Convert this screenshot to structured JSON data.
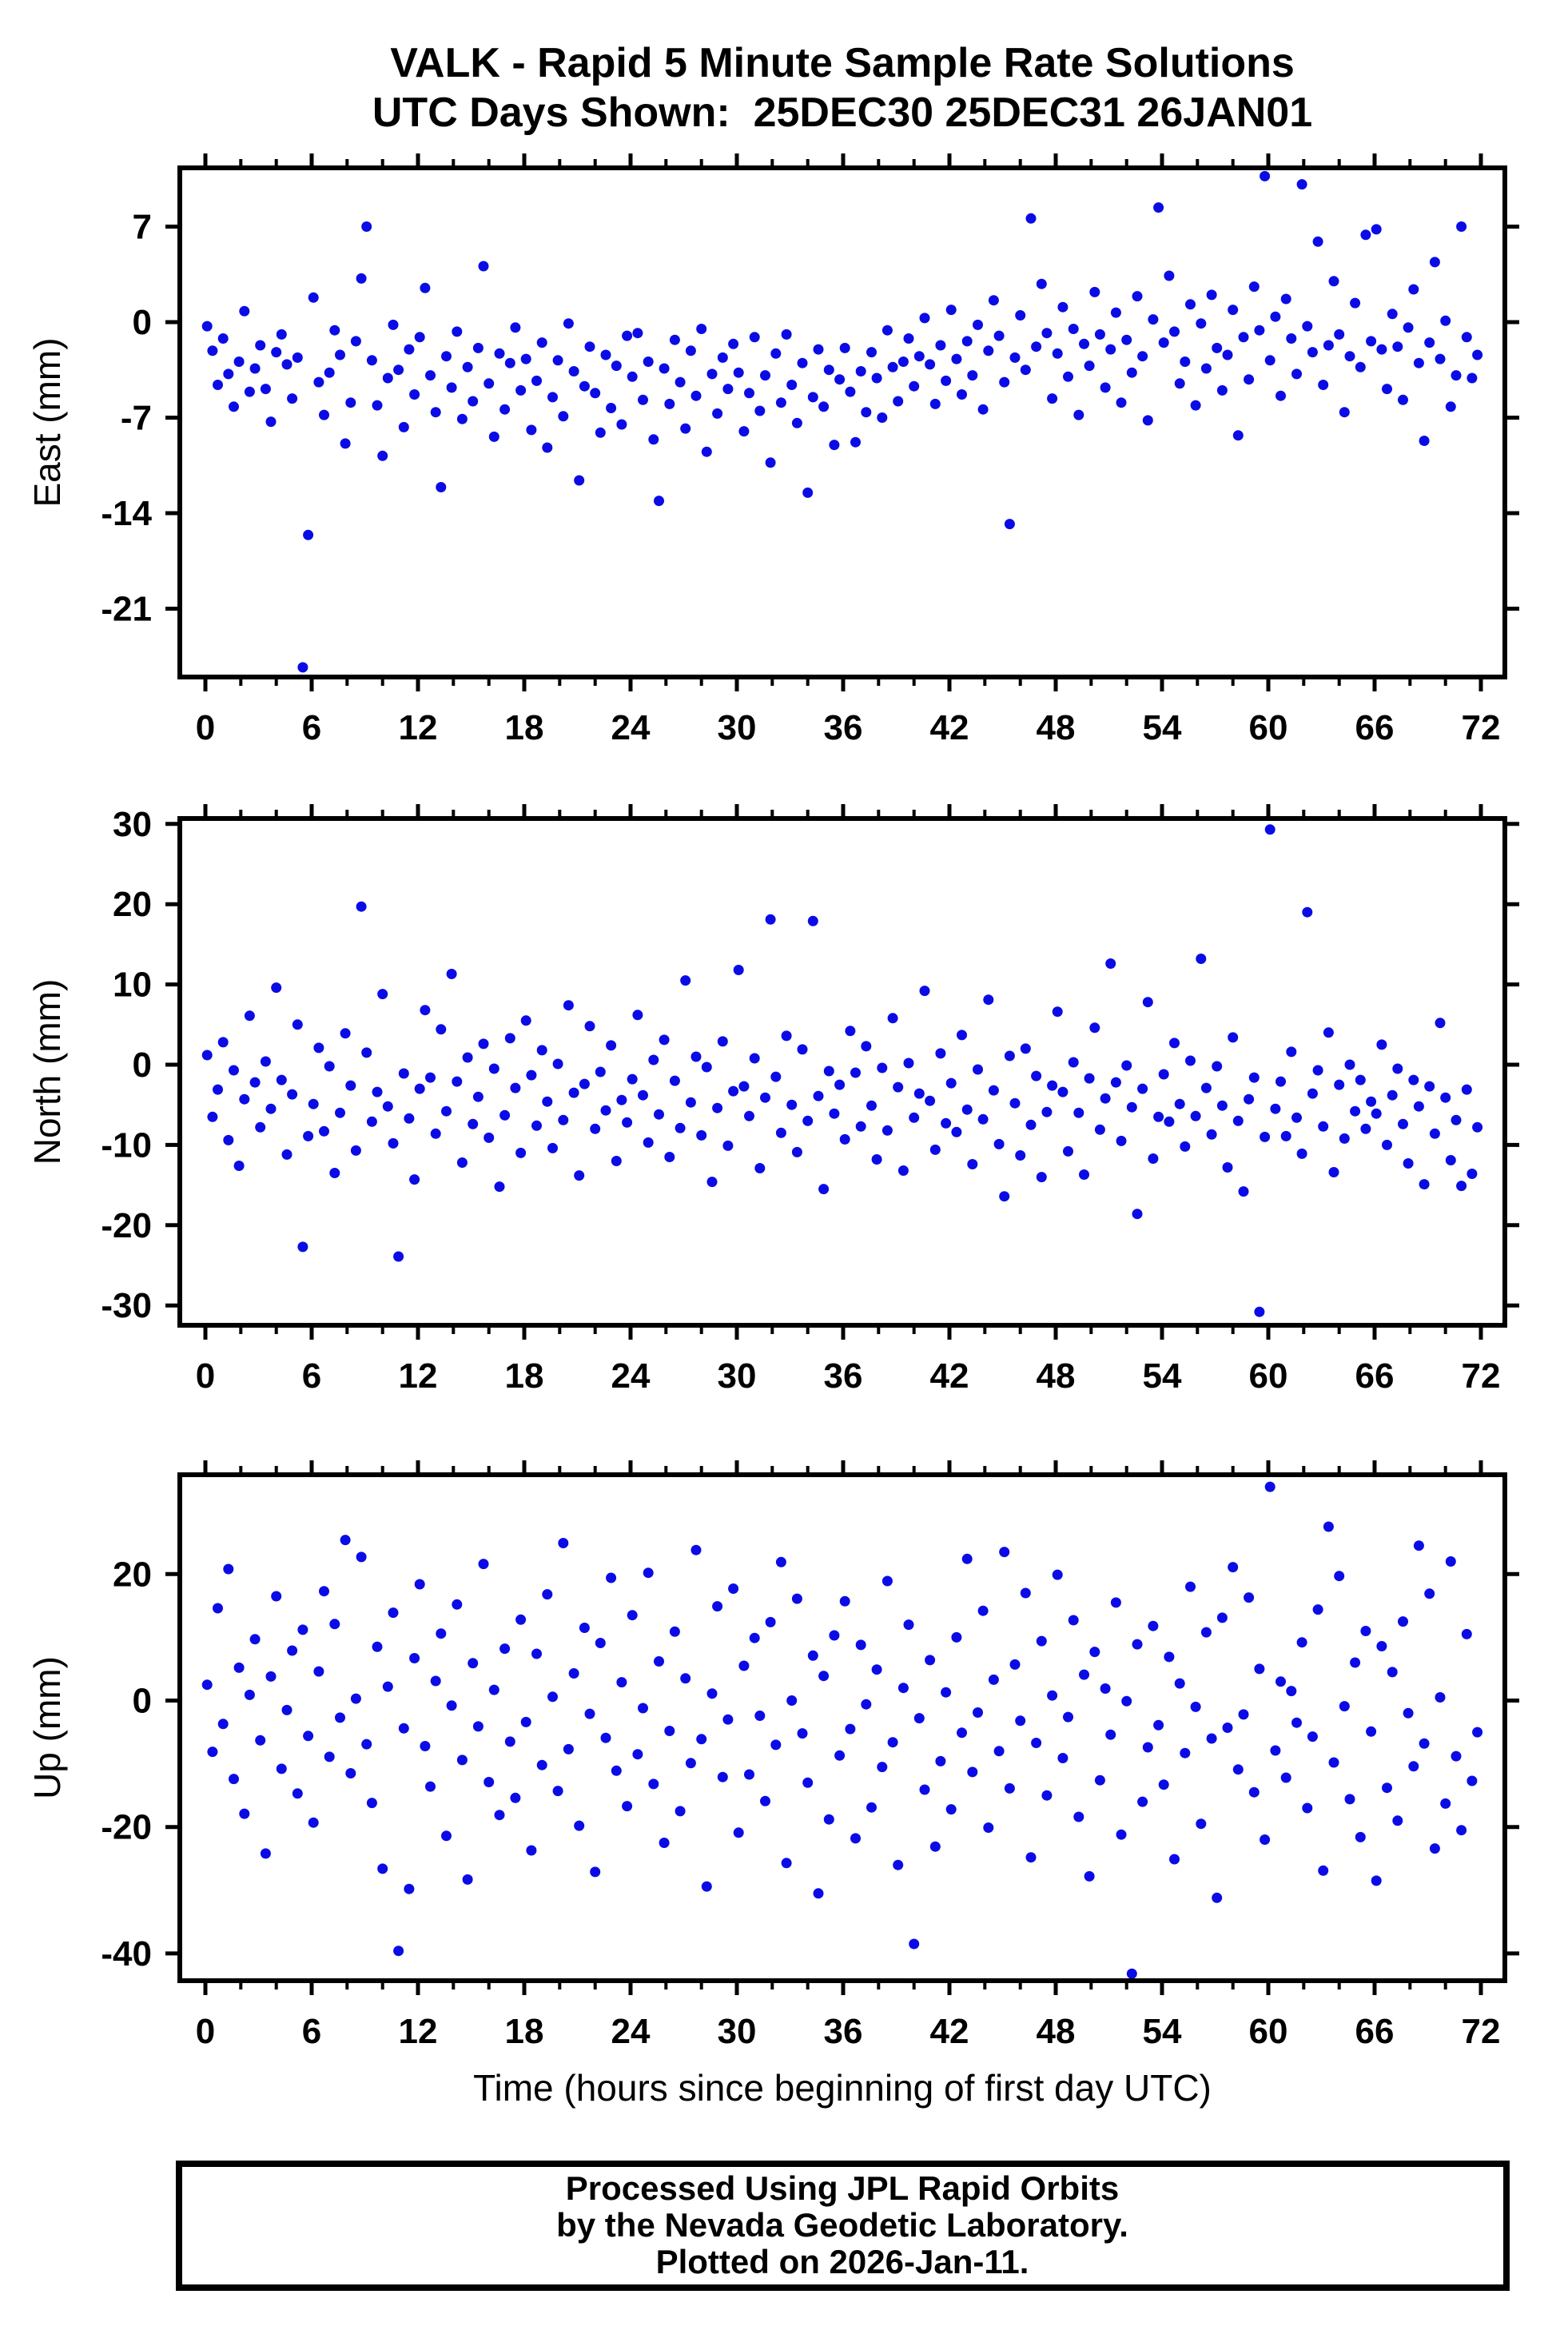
{
  "page": {
    "background": "#ffffff",
    "axes_color": "#000000"
  },
  "chart_data": {
    "type": "scatter",
    "title_line1": "VALK - Rapid 5 Minute Sample Rate Solutions",
    "title_line2": "UTC Days Shown:  25DEC30 25DEC31 26JAN01",
    "xlabel": "Time (hours since beginning of first day UTC)",
    "marker_color": "#0b0be6",
    "x_axis": {
      "min": -1.44,
      "max": 73.35,
      "major_ticks": [
        0,
        6,
        12,
        18,
        24,
        30,
        36,
        42,
        48,
        54,
        60,
        66,
        72
      ],
      "minor_step": 2
    },
    "x_start": 0.1,
    "x_step": 0.3,
    "panels": [
      {
        "name": "east",
        "ylabel": "East (mm)",
        "ymin": -26.0,
        "ymax": 11.3,
        "yticks": [
          7,
          0,
          -7,
          -14,
          -21
        ],
        "values": [
          -0.3,
          -2.1,
          -4.6,
          -1.2,
          -3.8,
          -6.2,
          -2.9,
          0.8,
          -5.1,
          -3.4,
          -1.7,
          -4.9,
          -7.3,
          -2.2,
          -0.9,
          -3.1,
          -5.6,
          -2.6,
          -25.3,
          -15.6,
          1.8,
          -4.4,
          -6.8,
          -3.7,
          -0.6,
          -2.4,
          -8.9,
          -5.9,
          -1.4,
          3.2,
          7.0,
          -2.8,
          -6.1,
          -9.8,
          -4.1,
          -0.2,
          -3.5,
          -7.7,
          -2.0,
          -5.3,
          -1.1,
          2.5,
          -3.9,
          -6.6,
          -12.1,
          -2.5,
          -4.8,
          -0.7,
          -7.1,
          -3.3,
          -5.8,
          -1.9,
          4.1,
          -4.5,
          -8.4,
          -2.3,
          -6.4,
          -3.0,
          -0.4,
          -5.0,
          -2.7,
          -7.9,
          -4.3,
          -1.5,
          -9.2,
          -5.5,
          -2.8,
          -6.9,
          -0.1,
          -3.6,
          -11.6,
          -4.7,
          -1.8,
          -5.2,
          -8.1,
          -2.4,
          -6.3,
          -3.2,
          -7.5,
          -1.0,
          -4.0,
          -0.8,
          -5.7,
          -2.9,
          -8.6,
          -13.1,
          -3.4,
          -6.0,
          -1.3,
          -4.4,
          -7.8,
          -2.1,
          -5.4,
          -0.5,
          -9.5,
          -3.8,
          -6.7,
          -2.6,
          -4.9,
          -1.6,
          -3.7,
          -8.0,
          -5.2,
          -1.1,
          -6.5,
          -3.9,
          -10.3,
          -2.3,
          -5.9,
          -0.9,
          -4.6,
          -7.4,
          -3.0,
          -12.5,
          -5.5,
          -2.0,
          -6.2,
          -3.5,
          -9.0,
          -4.2,
          -1.9,
          -5.1,
          -8.8,
          -3.6,
          -6.6,
          -2.2,
          -4.1,
          -7.0,
          -0.6,
          -3.3,
          -5.8,
          -2.9,
          -1.2,
          -4.7,
          -2.5,
          0.3,
          -3.1,
          -6.0,
          -1.7,
          -4.3,
          0.9,
          -2.7,
          -5.3,
          -1.4,
          -3.9,
          -0.2,
          -6.4,
          -2.1,
          1.6,
          -1.0,
          -4.4,
          -14.8,
          -2.6,
          0.5,
          -3.5,
          7.6,
          -1.8,
          2.8,
          -0.8,
          -5.6,
          -2.3,
          1.1,
          -4.0,
          -0.5,
          -6.8,
          -1.6,
          -3.2,
          2.2,
          -0.9,
          -4.8,
          -2.0,
          0.7,
          -5.9,
          -1.3,
          -3.7,
          1.9,
          -2.5,
          -7.2,
          0.2,
          8.4,
          -1.5,
          3.4,
          -0.7,
          -4.5,
          -2.9,
          1.3,
          -6.1,
          -0.1,
          -3.4,
          2.0,
          -1.9,
          -5.0,
          -2.4,
          0.9,
          -8.3,
          -1.1,
          -4.2,
          2.6,
          -0.6,
          10.7,
          -2.8,
          0.4,
          -5.4,
          1.7,
          -1.2,
          -3.8,
          10.1,
          -0.3,
          -2.2,
          5.9,
          -4.6,
          -1.7,
          3.0,
          -0.9,
          -6.6,
          -2.5,
          1.4,
          -3.3,
          6.4,
          -1.4,
          6.8,
          -2.0,
          -4.9,
          0.6,
          -1.8,
          -5.7,
          -0.4,
          2.4,
          -3.0,
          -8.7,
          -1.5,
          4.4,
          -2.7,
          0.1,
          -6.2,
          -3.9,
          7.0,
          -1.1,
          -4.1,
          -2.4
        ]
      },
      {
        "name": "north",
        "ylabel": "North (mm)",
        "ymin": -32.5,
        "ymax": 30.7,
        "yticks": [
          30,
          20,
          10,
          0,
          -10,
          -20,
          -30
        ],
        "values": [
          1.2,
          -6.5,
          -3.1,
          2.8,
          -9.4,
          -0.7,
          -12.6,
          -4.3,
          6.1,
          -2.2,
          -7.8,
          0.4,
          -5.5,
          9.6,
          -1.9,
          -11.2,
          -3.7,
          5.0,
          -22.7,
          -8.9,
          -4.9,
          2.1,
          -8.3,
          -0.2,
          -13.5,
          -6.0,
          3.9,
          -2.6,
          -10.7,
          19.7,
          1.5,
          -7.1,
          -3.4,
          8.8,
          -5.2,
          -9.8,
          -23.9,
          -1.1,
          -6.7,
          -14.3,
          -3.0,
          6.8,
          -1.6,
          -8.6,
          4.4,
          -5.8,
          11.3,
          -2.1,
          -12.2,
          0.9,
          -7.4,
          -4.0,
          2.6,
          -9.1,
          -0.5,
          -15.2,
          -6.3,
          3.3,
          -2.9,
          -11.0,
          5.5,
          -1.3,
          -7.6,
          1.8,
          -4.6,
          -10.4,
          0.1,
          -6.9,
          7.4,
          -3.5,
          -13.8,
          -2.4,
          4.8,
          -8.0,
          -0.9,
          -5.7,
          2.4,
          -12.0,
          -4.4,
          -7.2,
          -1.8,
          6.2,
          -3.8,
          -9.7,
          0.6,
          -6.2,
          3.1,
          -11.5,
          -2.0,
          -7.9,
          10.5,
          -4.7,
          1.0,
          -8.8,
          -0.3,
          -14.6,
          -5.4,
          2.9,
          -10.1,
          -3.3,
          11.8,
          -2.7,
          -6.4,
          0.8,
          -12.9,
          -4.1,
          18.1,
          -1.5,
          -8.5,
          3.6,
          -5.0,
          -10.9,
          1.9,
          -7.0,
          17.9,
          -3.9,
          -15.5,
          -0.8,
          -6.1,
          -2.5,
          -9.3,
          4.2,
          -1.0,
          -7.7,
          2.3,
          -5.1,
          -11.8,
          -0.4,
          -8.2,
          5.8,
          -2.8,
          -13.2,
          0.2,
          -6.6,
          -3.6,
          9.2,
          -4.5,
          -10.6,
          1.4,
          -7.3,
          -2.3,
          -8.4,
          3.7,
          -5.6,
          -12.4,
          -0.6,
          -6.8,
          8.1,
          -3.2,
          -9.9,
          -16.4,
          1.1,
          -4.8,
          -11.3,
          2.0,
          -7.5,
          -1.4,
          -14.0,
          -5.9,
          -2.6,
          6.6,
          -3.4,
          -10.8,
          0.3,
          -6.0,
          -13.7,
          -1.7,
          4.6,
          -8.1,
          -4.2,
          12.6,
          -2.2,
          -9.5,
          -0.1,
          -5.3,
          -18.6,
          -3.0,
          7.8,
          -11.7,
          -6.5,
          -1.2,
          -7.1,
          2.7,
          -4.9,
          -10.2,
          0.5,
          -6.4,
          13.2,
          -2.9,
          -8.7,
          -0.2,
          -5.1,
          -12.8,
          3.4,
          -7.0,
          -15.8,
          -4.3,
          -1.6,
          -30.8,
          -9.0,
          29.3,
          -5.5,
          -2.1,
          -8.9,
          1.6,
          -6.6,
          -11.1,
          19.0,
          -3.6,
          -0.7,
          -7.7,
          4.0,
          -13.4,
          -2.5,
          -9.2,
          0.0,
          -5.8,
          -1.9,
          -8.0,
          -4.6,
          -6.1,
          2.5,
          -10.0,
          -3.8,
          -0.5,
          -7.4,
          -12.3,
          -1.9,
          -5.2,
          -14.9,
          -2.7,
          -8.6,
          5.2,
          -4.1,
          -11.9,
          -6.9,
          -15.1,
          -3.1,
          -13.6,
          -7.8
        ]
      },
      {
        "name": "up",
        "ylabel": "Up (mm)",
        "ymin": -44.3,
        "ymax": 35.7,
        "yticks": [
          20,
          0,
          -20,
          -40
        ],
        "values": [
          2.5,
          -8.1,
          14.6,
          -3.7,
          20.8,
          -12.4,
          5.2,
          -17.9,
          0.9,
          9.7,
          -6.3,
          -24.2,
          3.8,
          16.5,
          -10.8,
          -1.5,
          7.9,
          -14.7,
          11.2,
          -5.6,
          -19.3,
          4.6,
          17.3,
          -8.9,
          12.1,
          -2.7,
          25.4,
          -11.5,
          0.3,
          22.7,
          -6.9,
          -16.2,
          8.5,
          -26.6,
          2.2,
          13.9,
          -39.6,
          -4.4,
          -29.8,
          6.7,
          18.4,
          -7.2,
          -13.6,
          3.1,
          10.6,
          -21.4,
          -0.8,
          15.2,
          -9.4,
          -28.3,
          5.9,
          -4.1,
          21.6,
          -12.9,
          1.7,
          -18.1,
          8.2,
          -6.5,
          -15.4,
          12.8,
          -3.4,
          -23.7,
          7.4,
          -10.2,
          16.8,
          0.6,
          -14.3,
          24.9,
          -7.7,
          4.3,
          -19.8,
          11.5,
          -2.1,
          -27.1,
          9.1,
          -5.9,
          19.4,
          -11.1,
          2.9,
          -16.7,
          13.5,
          -8.5,
          -1.2,
          20.2,
          -13.2,
          6.2,
          -22.5,
          -4.8,
          10.9,
          -17.5,
          3.5,
          -9.9,
          23.8,
          -6.1,
          -29.4,
          1.1,
          14.9,
          -12.1,
          -3.0,
          17.7,
          -20.9,
          5.5,
          -11.7,
          9.9,
          -2.4,
          -15.9,
          12.4,
          -7.0,
          21.9,
          -25.7,
          0.0,
          16.1,
          -5.2,
          -13.0,
          7.1,
          -30.5,
          3.9,
          -18.8,
          10.3,
          -8.7,
          15.7,
          -4.5,
          -21.8,
          8.8,
          -0.6,
          -16.9,
          4.9,
          -10.5,
          18.9,
          -6.6,
          -26.0,
          2.0,
          12.0,
          -38.5,
          -2.8,
          -14.1,
          6.4,
          -23.1,
          -9.6,
          1.3,
          -17.2,
          10.0,
          -5.1,
          22.4,
          -11.3,
          -1.9,
          14.2,
          -20.1,
          3.3,
          -8.0,
          23.5,
          -13.9,
          5.7,
          -3.2,
          17.0,
          -24.8,
          -6.7,
          9.4,
          -15.0,
          0.8,
          19.9,
          -9.1,
          -2.6,
          12.7,
          -18.4,
          4.1,
          -27.8,
          7.7,
          -12.6,
          1.9,
          -5.4,
          15.5,
          -21.2,
          -0.1,
          -43.2,
          8.9,
          -16.0,
          -7.4,
          11.8,
          -3.9,
          -13.3,
          6.9,
          -25.1,
          2.7,
          -8.3,
          18.0,
          -1.0,
          -19.5,
          10.8,
          -6.0,
          -31.2,
          13.1,
          -4.3,
          21.1,
          -10.9,
          -2.2,
          16.3,
          -14.5,
          5.0,
          -22.0,
          33.8,
          -7.9,
          3.0,
          -12.2,
          1.5,
          -3.5,
          9.2,
          -17.0,
          -5.7,
          14.4,
          -26.9,
          27.5,
          -9.8,
          19.7,
          -0.9,
          -15.6,
          6.0,
          -21.6,
          11.0,
          -4.9,
          -28.5,
          8.6,
          -13.8,
          4.5,
          -19.0,
          12.5,
          -2.0,
          -10.4,
          24.5,
          -6.8,
          16.9,
          -23.4,
          0.5,
          -16.3,
          22.0,
          -8.8,
          -20.5,
          10.5,
          -12.7,
          -5.0
        ]
      }
    ],
    "footer_lines": [
      "Processed Using JPL Rapid Orbits",
      "by the Nevada Geodetic Laboratory.",
      "Plotted on 2026-Jan-11."
    ]
  }
}
